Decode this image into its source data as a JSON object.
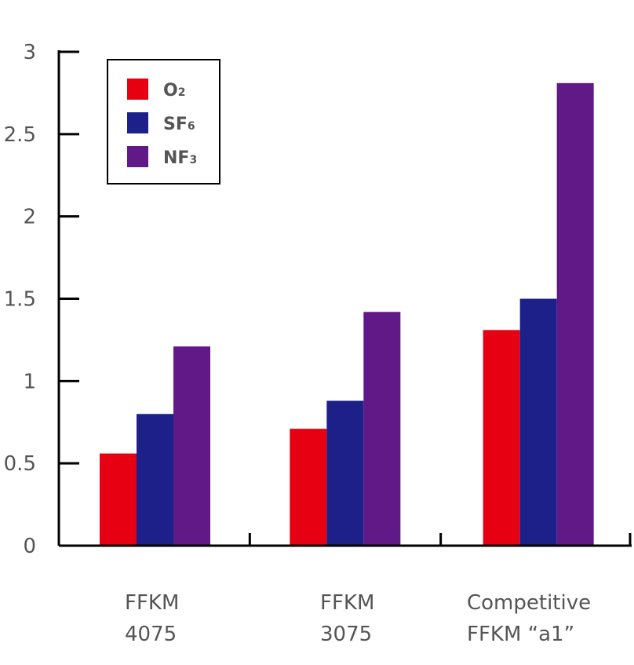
{
  "chart_data": {
    "type": "bar",
    "categories": [
      [
        "FFKM",
        "4075"
      ],
      [
        "FFKM",
        "3075"
      ],
      [
        "Competitive",
        "FFKM “a1”"
      ]
    ],
    "series": [
      {
        "name": "O2",
        "name_main": "O",
        "name_sub": "2",
        "color": "#e60012",
        "values": [
          0.56,
          0.71,
          1.31
        ]
      },
      {
        "name": "SF6",
        "name_main": "SF",
        "name_sub": "6",
        "color": "#1d2088",
        "values": [
          0.8,
          0.88,
          1.5
        ]
      },
      {
        "name": "NF3",
        "name_main": "NF",
        "name_sub": "3",
        "color": "#601986",
        "values": [
          1.21,
          1.42,
          2.81
        ]
      }
    ],
    "yticks": [
      "0",
      "0.5",
      "1",
      "1.5",
      "2",
      "2.5",
      "3"
    ],
    "ylim": [
      0,
      3
    ],
    "title": "",
    "xlabel": "",
    "ylabel": "",
    "legend_position": "top-left",
    "grid": false
  }
}
